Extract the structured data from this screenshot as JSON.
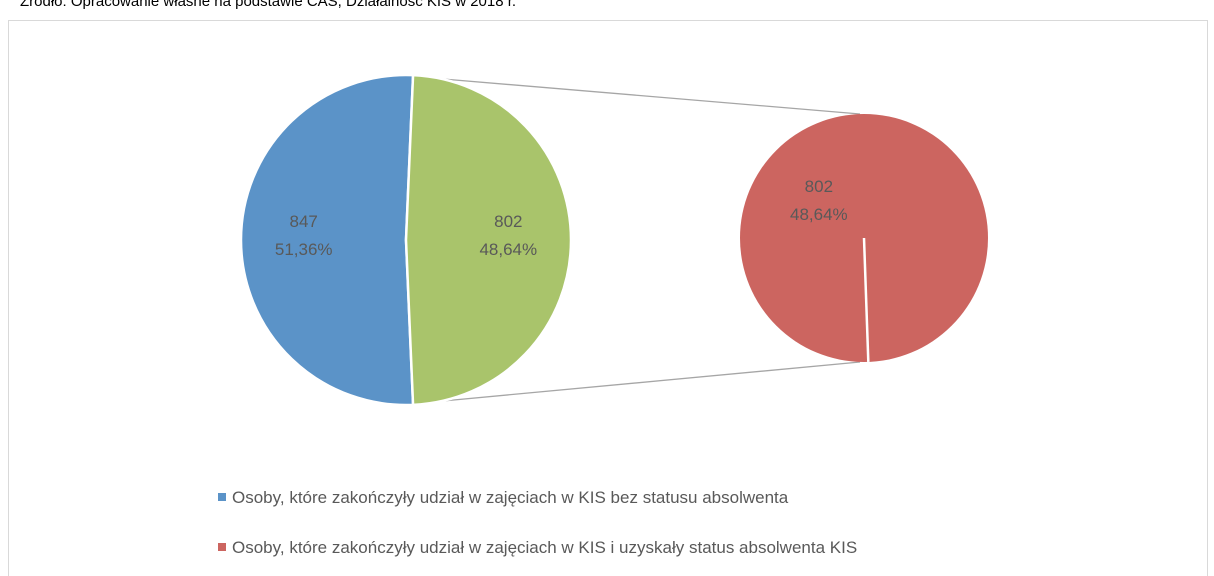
{
  "source": "Źródło: Opracowanie własne na podstawie CAS, Działalność KIS w 2018 r.",
  "chart_data": {
    "type": "pie_of_pie",
    "values": [
      847,
      802
    ],
    "value_labels": [
      "847",
      "802"
    ],
    "percents": [
      51.36,
      48.64
    ],
    "percent_labels": [
      "51,36%",
      "48,64%"
    ],
    "colors": [
      "#5b93c8",
      "#a9c46b"
    ],
    "secondary": {
      "values": [
        802
      ],
      "value_labels": [
        "802"
      ],
      "percents": [
        48.64
      ],
      "percent_labels": [
        "48,64%"
      ],
      "colors": [
        "#cc6560"
      ]
    },
    "legend": [
      {
        "name": "Osoby, które zakończyły udział w zajęciach w KIS bez statusu absolwenta",
        "color": "#5b93c8"
      },
      {
        "name": "Osoby, które zakończyły udział w zajęciach w KIS i uzyskały status absolwenta KIS",
        "color": "#cc6560"
      }
    ]
  }
}
